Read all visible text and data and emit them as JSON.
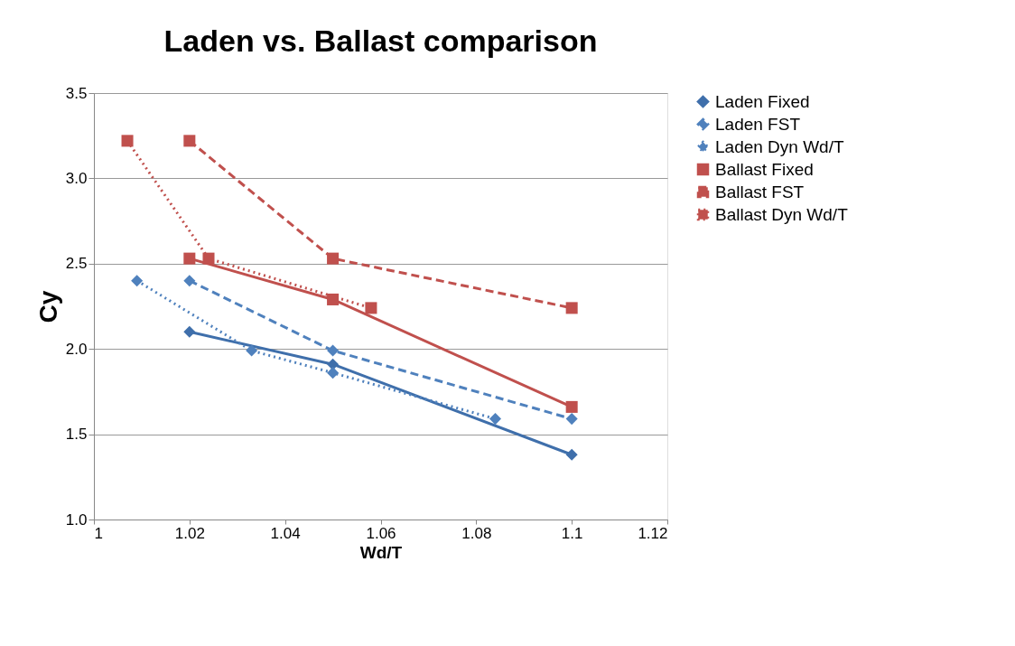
{
  "chart_data": {
    "type": "line",
    "title": "Laden vs. Ballast comparison",
    "xlabel": "Wd/T",
    "ylabel": "Cy",
    "xlim": [
      1,
      1.12
    ],
    "xticks": [
      1,
      1.02,
      1.04,
      1.06,
      1.08,
      1.1,
      1.12
    ],
    "ylim": [
      1.0,
      3.5
    ],
    "yticks": [
      {
        "value": 1.0,
        "label": "1.0"
      },
      {
        "value": 1.5,
        "label": "1.5"
      },
      {
        "value": 2.0,
        "label": "2.0"
      },
      {
        "value": 2.5,
        "label": "2.5"
      },
      {
        "value": 3.0,
        "label": "3.0"
      },
      {
        "value": 3.5,
        "label": "3.5"
      }
    ],
    "grid": "y",
    "legend": "right",
    "series": [
      {
        "name": "Laden Fixed",
        "color": "#3f6fab",
        "marker": "diamond",
        "line_style": "solid",
        "x": [
          1.02,
          1.05,
          1.1
        ],
        "values": [
          2.1,
          1.91,
          1.38
        ]
      },
      {
        "name": "Laden FST",
        "color": "#4f81bd",
        "marker": "diamond",
        "line_style": "dashed",
        "x": [
          1.02,
          1.05,
          1.1
        ],
        "values": [
          2.4,
          1.99,
          1.59
        ]
      },
      {
        "name": "Laden Dyn Wd/T",
        "color": "#4f81bd",
        "marker": "diamond",
        "line_style": "dotted",
        "x": [
          1.009,
          1.033,
          1.05,
          1.084
        ],
        "values": [
          2.4,
          1.99,
          1.86,
          1.59
        ]
      },
      {
        "name": "Ballast Fixed",
        "color": "#c0504d",
        "marker": "square",
        "line_style": "solid",
        "x": [
          1.02,
          1.05,
          1.1
        ],
        "values": [
          2.53,
          2.29,
          1.66
        ]
      },
      {
        "name": "Ballast FST",
        "color": "#c0504d",
        "marker": "square",
        "line_style": "dashed",
        "x": [
          1.02,
          1.05,
          1.1
        ],
        "values": [
          3.22,
          2.53,
          2.24
        ]
      },
      {
        "name": "Ballast Dyn Wd/T",
        "color": "#c0504d",
        "marker": "square",
        "line_style": "dotted",
        "x": [
          1.007,
          1.024,
          1.058
        ],
        "values": [
          3.22,
          2.53,
          2.24
        ]
      }
    ]
  }
}
